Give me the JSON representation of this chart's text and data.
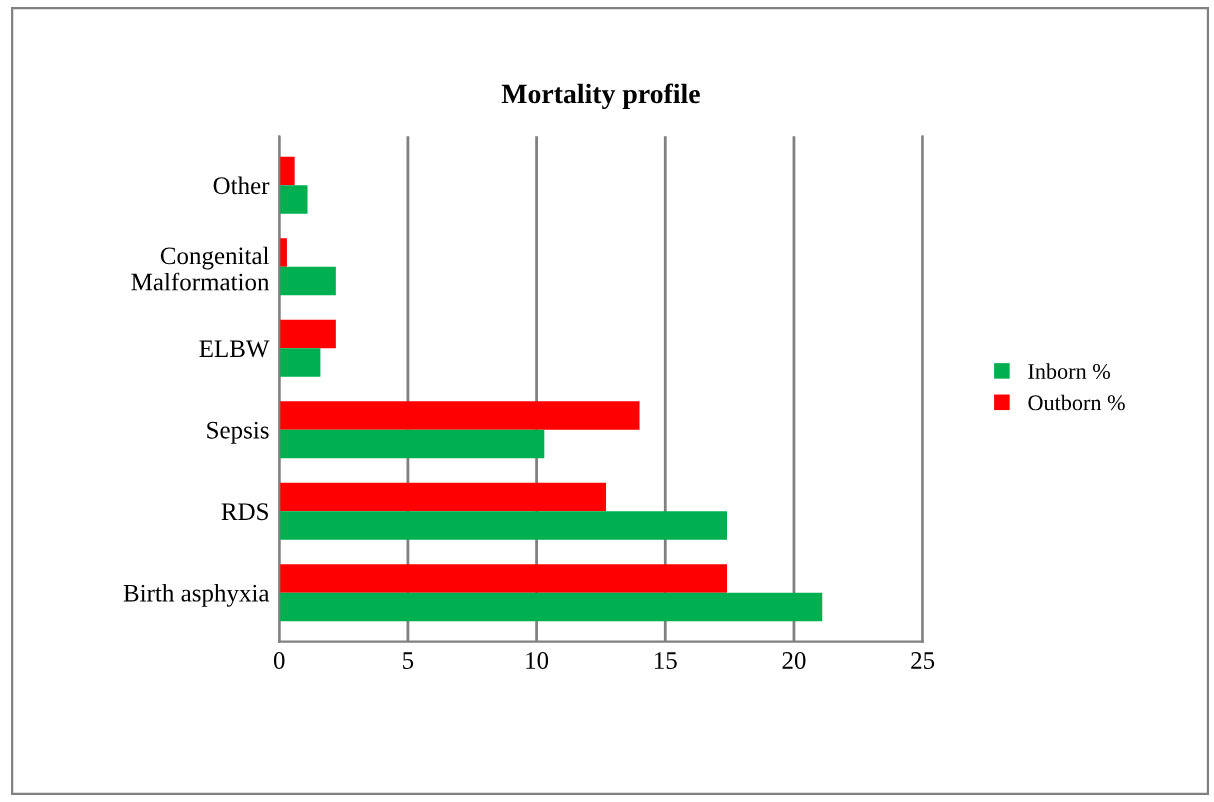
{
  "chart_data": {
    "type": "bar",
    "orientation": "horizontal",
    "title": "Mortality profile",
    "categories": [
      "Other",
      "Congenital\nMalformation",
      "ELBW",
      "Sepsis",
      "RDS",
      "Birth asphyxia"
    ],
    "series": [
      {
        "name": "Outborn %",
        "color": "#ff0000",
        "values": [
          0.6,
          0.3,
          2.2,
          14.0,
          12.7,
          17.4
        ]
      },
      {
        "name": "Inborn %",
        "color": "#00b050",
        "values": [
          1.1,
          2.2,
          1.6,
          10.3,
          17.4,
          21.1
        ]
      }
    ],
    "xlim": [
      0,
      25
    ],
    "xticks": [
      0,
      5,
      10,
      15,
      20,
      25
    ],
    "grid": "x",
    "legend": "right"
  }
}
